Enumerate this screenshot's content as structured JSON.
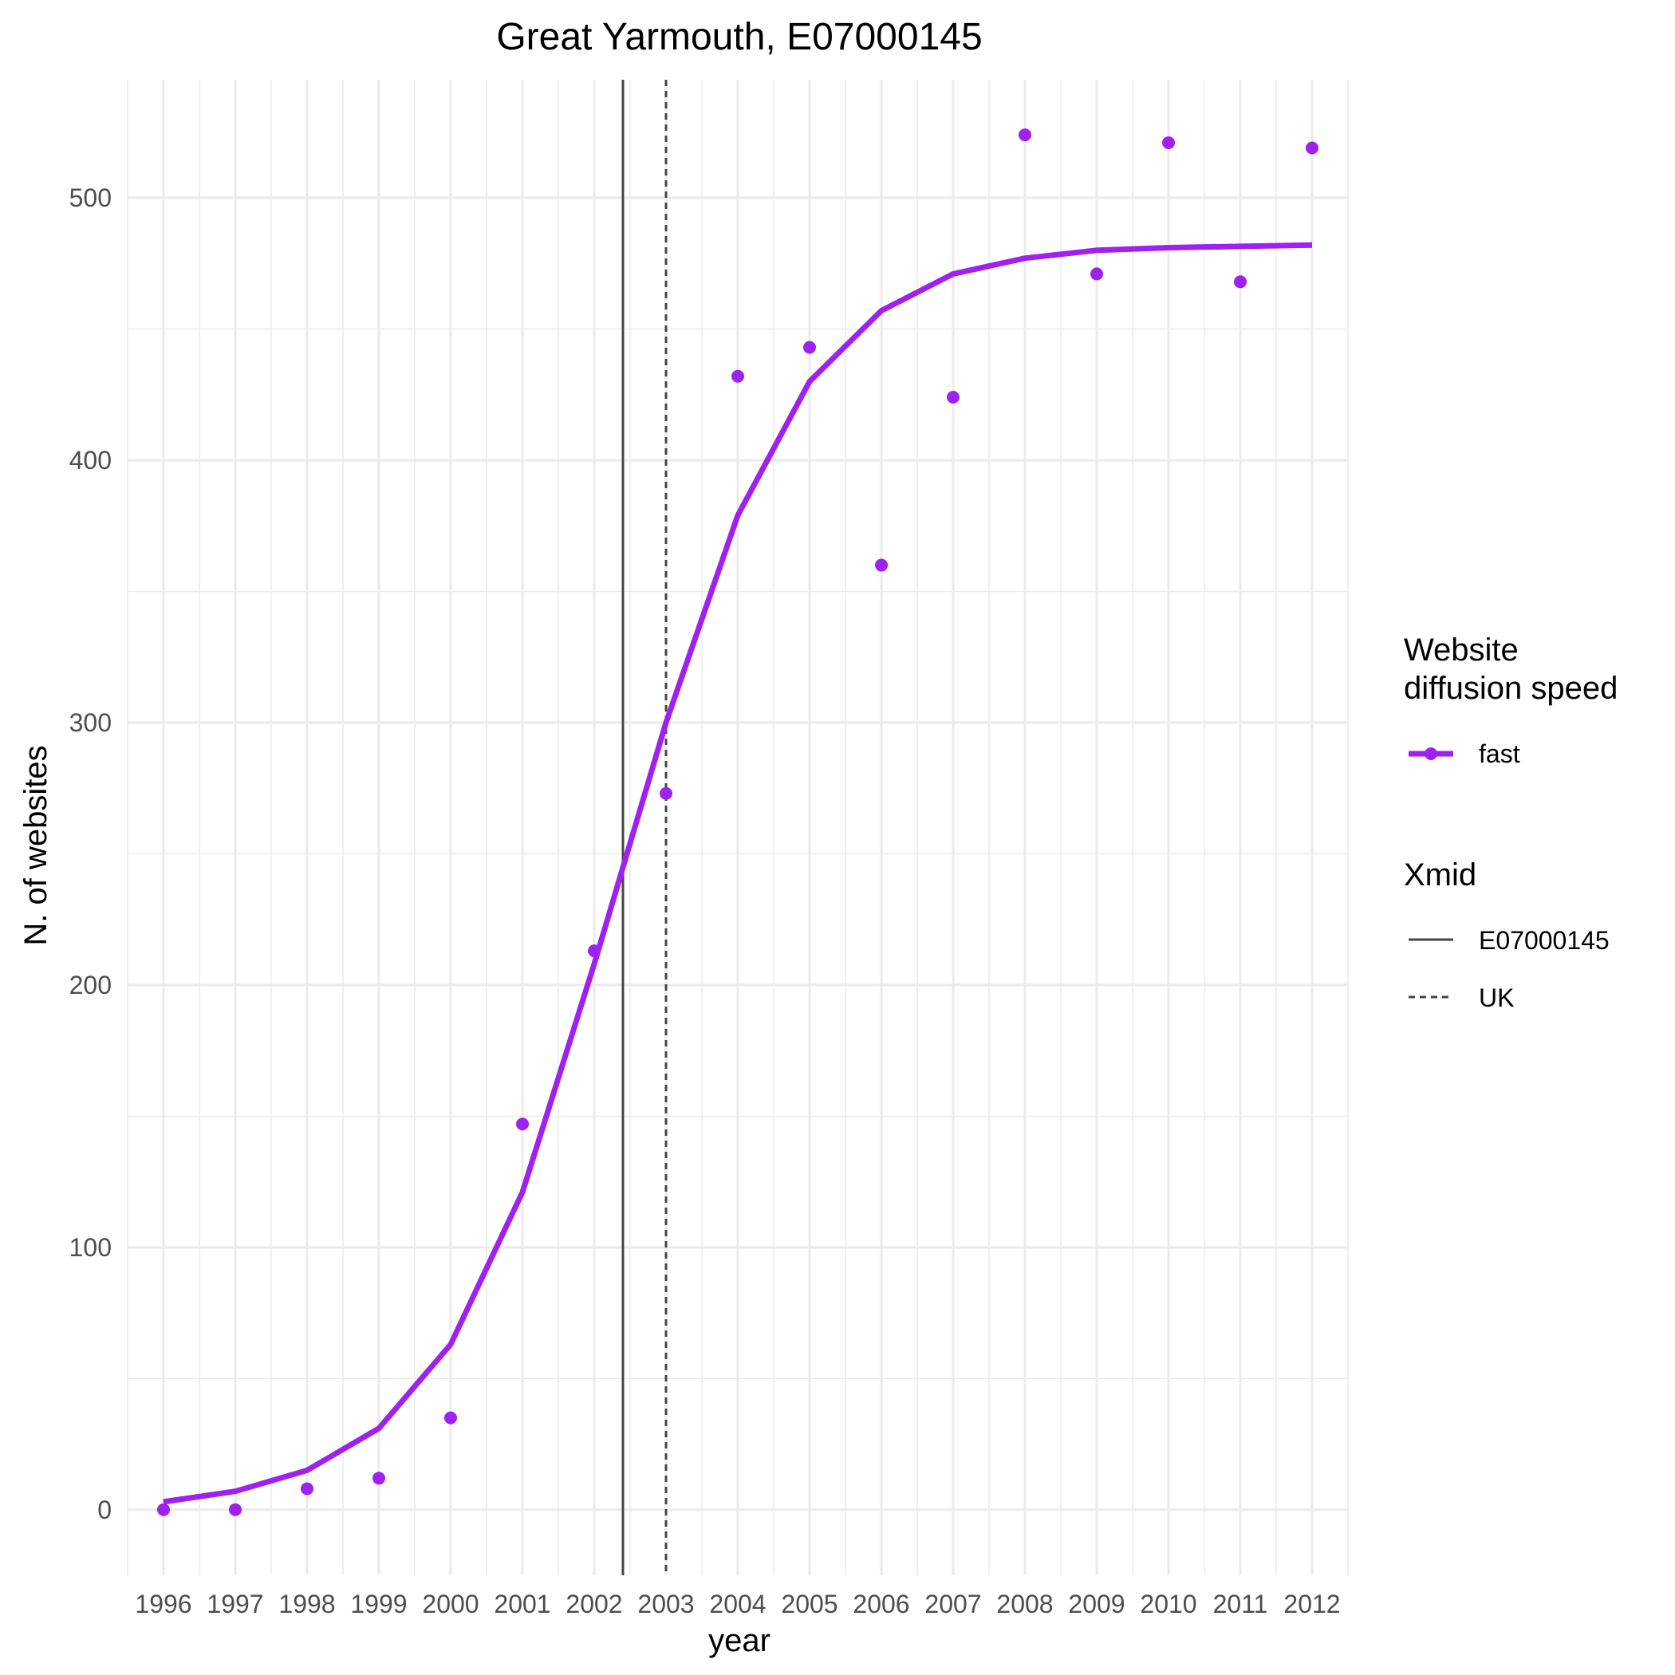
{
  "chart_data": {
    "type": "line",
    "title": "Great Yarmouth, E07000145",
    "xlabel": "year",
    "ylabel": "N. of websites",
    "x": [
      1996,
      1997,
      1998,
      1999,
      2000,
      2001,
      2002,
      2003,
      2004,
      2005,
      2006,
      2007,
      2008,
      2009,
      2010,
      2011,
      2012
    ],
    "xlim": [
      1995.5,
      2012.5
    ],
    "ylim": [
      -25,
      545
    ],
    "yticks": [
      0,
      100,
      200,
      300,
      400,
      500
    ],
    "grid": true,
    "series": [
      {
        "name": "fast",
        "color": "#a020f0",
        "points": [
          0,
          0,
          8,
          12,
          35,
          147,
          213,
          273,
          432,
          443,
          360,
          424,
          524,
          471,
          521,
          468,
          519
        ],
        "fitted": [
          3,
          7,
          15,
          31,
          63,
          121,
          208,
          300,
          379,
          430,
          457,
          471,
          477,
          480,
          481,
          481.5,
          482
        ]
      }
    ],
    "vlines": [
      {
        "name": "E07000145",
        "x": 2002.4,
        "style": "solid",
        "color": "#444444"
      },
      {
        "name": "UK",
        "x": 2003.0,
        "style": "dashed",
        "color": "#444444"
      }
    ],
    "legend": {
      "placement": "right",
      "groups": [
        {
          "title_lines": [
            "Website",
            "diffusion speed"
          ],
          "items": [
            "fast"
          ]
        },
        {
          "title_lines": [
            "Xmid"
          ],
          "items": [
            "E07000145",
            "UK"
          ]
        }
      ]
    }
  }
}
